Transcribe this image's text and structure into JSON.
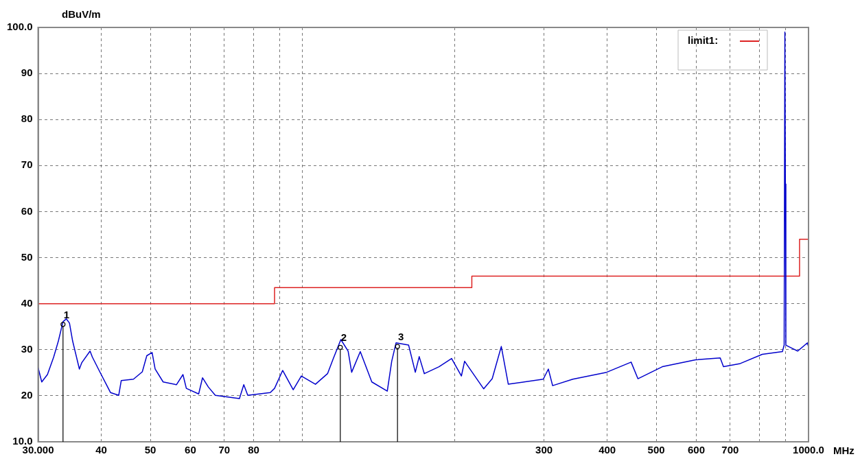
{
  "chart_data": {
    "type": "line",
    "xlabel": "MHz",
    "ylabel": "dBuV/m",
    "log": "x",
    "grid": true,
    "legend": "top right",
    "marker": "none",
    "line_style": "solid",
    "xlim": [
      30,
      1000
    ],
    "ylim": [
      10,
      100
    ],
    "xticks": [
      {
        "value": 30,
        "label": "30.000"
      },
      40,
      50,
      60,
      70,
      80,
      {
        "value": 90,
        "label": null
      },
      {
        "value": 100,
        "label": null
      },
      {
        "value": 200,
        "label": null
      },
      300,
      400,
      500,
      600,
      700,
      {
        "value": 800,
        "label": null
      },
      {
        "value": 900,
        "label": null
      },
      {
        "value": 1000,
        "label": "1000.0"
      }
    ],
    "yticks": [
      {
        "value": 10,
        "label": "10.0"
      },
      20,
      30,
      40,
      50,
      60,
      70,
      80,
      90,
      {
        "value": 100,
        "label": "100.0"
      }
    ],
    "series": [
      {
        "color": "#0000cc",
        "x": [
          30,
          30.5,
          31.3,
          32.2,
          32.9,
          33.6,
          34.1,
          34.6,
          35.1,
          36.2,
          36.6,
          38,
          38.4,
          39.6,
          41.7,
          43.3,
          43.8,
          46.3,
          48.2,
          49.2,
          50.4,
          51.1,
          53,
          56.3,
          58,
          58.9,
          62.3,
          63.4,
          65.1,
          67.2,
          75,
          76.5,
          77.9,
          86.3,
          88,
          91.3,
          95.8,
          99.4,
          106,
          112,
          115,
          119,
          123,
          125,
          130,
          137,
          147,
          150,
          153,
          162,
          167,
          170,
          174,
          186,
          197,
          206,
          209,
          228,
          237,
          247,
          255,
          299,
          306,
          312,
          342,
          399,
          446,
          460,
          514,
          598,
          669,
          679,
          733,
          810,
          888,
          895,
          898,
          900,
          902,
          913,
          952,
          995,
          1000
        ],
        "values": [
          26.1,
          23,
          24.6,
          28.4,
          31.9,
          36.1,
          36.7,
          35.8,
          31.9,
          25.8,
          27.2,
          29.7,
          28.4,
          25.5,
          20.7,
          20.1,
          23.3,
          23.6,
          25.2,
          28.7,
          29.4,
          25.8,
          23,
          22.4,
          24.6,
          21.6,
          20.4,
          23.9,
          21.9,
          20.1,
          19.4,
          22.4,
          20.1,
          20.7,
          21.6,
          25.5,
          21.3,
          24.3,
          22.5,
          24.8,
          28.1,
          32.2,
          29.7,
          25.1,
          29.6,
          23,
          21,
          27.5,
          31.5,
          31,
          25.1,
          28.5,
          24.8,
          26.3,
          28.1,
          24.3,
          27.5,
          21.5,
          23.7,
          30.7,
          22.5,
          23.6,
          25.8,
          22.2,
          23.6,
          25.1,
          27.3,
          23.7,
          26.3,
          27.8,
          28.2,
          26.3,
          27,
          29,
          29.6,
          31,
          99,
          66,
          31,
          30.7,
          29.7,
          31.5,
          30.6
        ]
      },
      {
        "name": "limit1:",
        "type": "step",
        "color": "#dd2222",
        "x": [
          30,
          88,
          216,
          960,
          1000
        ],
        "values": [
          40,
          43.5,
          46,
          54,
          54
        ]
      }
    ],
    "annotations": [
      {
        "text": "1",
        "x": 33.6,
        "y": 35.5
      },
      {
        "text": "2",
        "x": 118.7,
        "y": 30.5
      },
      {
        "text": "3",
        "x": 154,
        "y": 30.7
      }
    ]
  }
}
